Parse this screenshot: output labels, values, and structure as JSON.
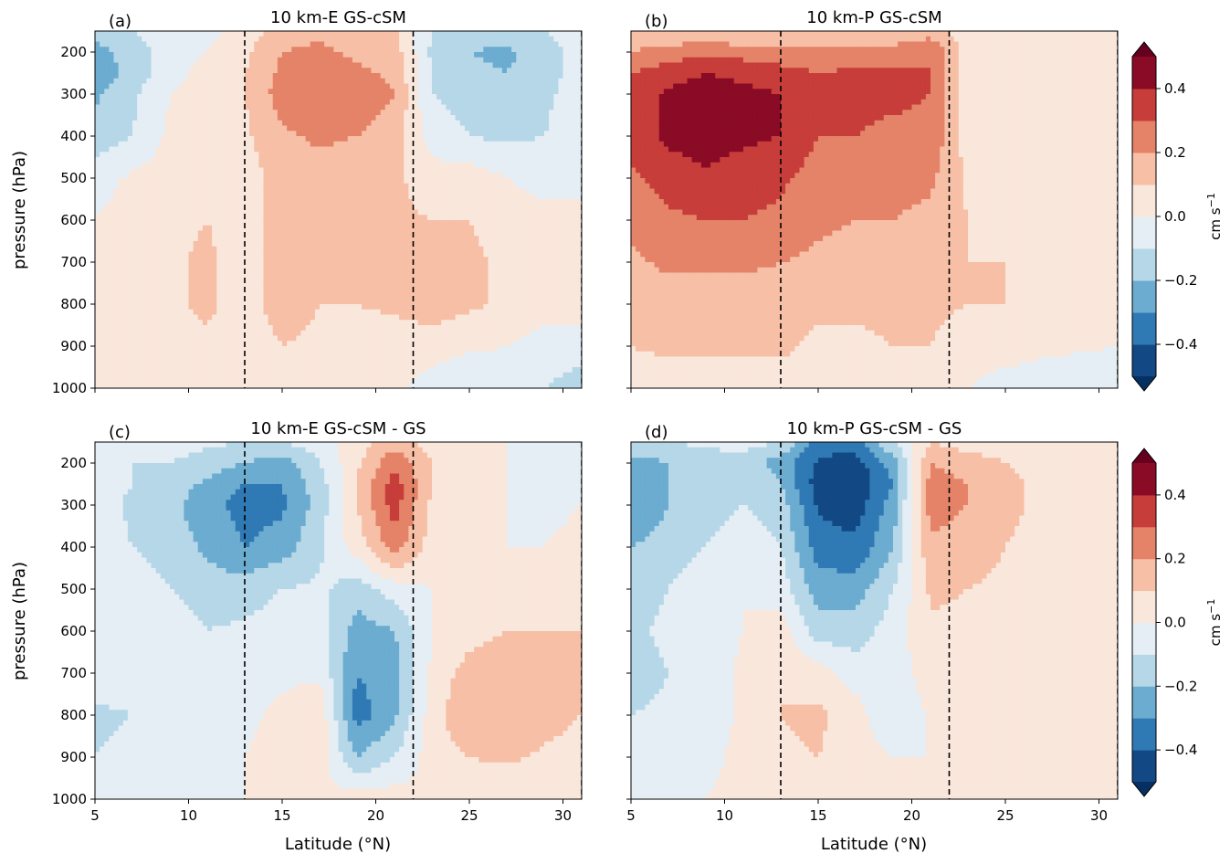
{
  "figure": {
    "ylabel": "pressure (hPa)",
    "xlabel": "Latitude (°N)",
    "cbar_label": "cm s",
    "cbar_label_exp": "−1"
  },
  "chart_data": [
    {
      "type": "heatmap",
      "panel": "(a)",
      "title": "10 km-E GS-cSM",
      "xlim": [
        5,
        31
      ],
      "ylim": [
        1000,
        150
      ],
      "xticks": [
        5,
        10,
        15,
        20,
        25,
        30
      ],
      "xtick_labels": [],
      "yticks": [
        200,
        300,
        400,
        500,
        600,
        700,
        800,
        900,
        1000
      ],
      "ytick_labels": [
        "200",
        "300",
        "400",
        "500",
        "600",
        "700",
        "800",
        "900",
        "1000"
      ],
      "vlines": [
        13,
        22,
        31
      ],
      "x": [
        5,
        7,
        9,
        11,
        13,
        15,
        17,
        19,
        21,
        23,
        25,
        27,
        29,
        31
      ],
      "y": [
        150,
        200,
        250,
        300,
        400,
        500,
        600,
        700,
        800,
        900,
        1000
      ],
      "z": [
        [
          -0.15,
          -0.1,
          -0.05,
          -0.03,
          0.05,
          0.15,
          0.18,
          0.15,
          0.12,
          -0.1,
          -0.15,
          -0.15,
          -0.1,
          -0.05
        ],
        [
          -0.25,
          -0.15,
          -0.05,
          0.0,
          0.08,
          0.2,
          0.22,
          0.18,
          0.15,
          -0.12,
          -0.2,
          -0.22,
          -0.15,
          -0.05
        ],
        [
          -0.28,
          -0.15,
          -0.05,
          0.05,
          0.1,
          0.22,
          0.25,
          0.22,
          0.18,
          -0.1,
          -0.18,
          -0.2,
          -0.15,
          -0.05
        ],
        [
          -0.22,
          -0.12,
          0.0,
          0.08,
          0.1,
          0.25,
          0.28,
          0.25,
          0.2,
          -0.1,
          -0.15,
          -0.18,
          -0.12,
          -0.05
        ],
        [
          -0.15,
          -0.1,
          0.02,
          0.05,
          0.08,
          0.18,
          0.22,
          0.2,
          0.15,
          -0.05,
          -0.1,
          -0.12,
          -0.1,
          -0.05
        ],
        [
          -0.05,
          0.02,
          0.05,
          0.08,
          0.05,
          0.15,
          0.15,
          0.12,
          0.12,
          0.05,
          0.05,
          0.0,
          -0.05,
          -0.05
        ],
        [
          0.0,
          0.05,
          0.08,
          0.1,
          0.05,
          0.15,
          0.12,
          0.12,
          0.12,
          0.1,
          0.1,
          0.05,
          0.05,
          0.05
        ],
        [
          0.0,
          0.05,
          0.08,
          0.12,
          0.05,
          0.15,
          0.12,
          0.1,
          0.12,
          0.12,
          0.12,
          0.08,
          0.05,
          0.05
        ],
        [
          0.02,
          0.05,
          0.08,
          0.12,
          0.05,
          0.15,
          0.1,
          0.1,
          0.12,
          0.15,
          0.12,
          0.08,
          0.05,
          0.05
        ],
        [
          0.02,
          0.05,
          0.05,
          0.08,
          0.05,
          0.1,
          0.08,
          0.05,
          0.05,
          0.05,
          0.02,
          0.0,
          -0.05,
          -0.05
        ],
        [
          0.02,
          0.02,
          0.05,
          0.05,
          0.05,
          0.05,
          0.05,
          0.02,
          0.02,
          -0.05,
          -0.1,
          -0.08,
          -0.1,
          -0.15
        ]
      ]
    },
    {
      "type": "heatmap",
      "panel": "(b)",
      "title": "10 km-P GS-cSM",
      "xlim": [
        5,
        31
      ],
      "ylim": [
        1000,
        150
      ],
      "xticks": [
        5,
        10,
        15,
        20,
        25,
        30
      ],
      "xtick_labels": [],
      "yticks": [
        200,
        300,
        400,
        500,
        600,
        700,
        800,
        900,
        1000
      ],
      "ytick_labels": [],
      "vlines": [
        13,
        22,
        31
      ],
      "x": [
        5,
        7,
        9,
        11,
        13,
        15,
        17,
        19,
        21,
        23,
        25,
        27,
        29,
        31
      ],
      "y": [
        150,
        200,
        250,
        300,
        400,
        500,
        600,
        700,
        800,
        900,
        1000
      ],
      "z": [
        [
          0.1,
          0.1,
          0.1,
          0.1,
          0.1,
          0.1,
          0.1,
          0.1,
          0.15,
          0.02,
          0.0,
          0.0,
          0.0,
          0.0
        ],
        [
          0.2,
          0.25,
          0.28,
          0.25,
          0.22,
          0.22,
          0.25,
          0.25,
          0.3,
          0.05,
          0.0,
          0.0,
          0.0,
          0.0
        ],
        [
          0.3,
          0.35,
          0.4,
          0.38,
          0.35,
          0.3,
          0.32,
          0.32,
          0.3,
          0.05,
          0.0,
          0.0,
          0.0,
          0.0
        ],
        [
          0.35,
          0.42,
          0.45,
          0.42,
          0.4,
          0.32,
          0.32,
          0.32,
          0.3,
          0.05,
          0.02,
          0.0,
          0.0,
          0.0
        ],
        [
          0.35,
          0.42,
          0.45,
          0.42,
          0.4,
          0.3,
          0.3,
          0.28,
          0.28,
          0.05,
          0.02,
          0.02,
          0.0,
          0.0
        ],
        [
          0.28,
          0.35,
          0.38,
          0.35,
          0.32,
          0.25,
          0.25,
          0.22,
          0.22,
          0.08,
          0.05,
          0.05,
          0.02,
          0.0
        ],
        [
          0.22,
          0.28,
          0.3,
          0.3,
          0.28,
          0.22,
          0.2,
          0.2,
          0.18,
          0.1,
          0.08,
          0.05,
          0.05,
          0.0
        ],
        [
          0.18,
          0.22,
          0.22,
          0.22,
          0.2,
          0.18,
          0.15,
          0.15,
          0.15,
          0.1,
          0.1,
          0.05,
          0.05,
          0.02
        ],
        [
          0.15,
          0.15,
          0.15,
          0.15,
          0.15,
          0.12,
          0.12,
          0.12,
          0.12,
          0.1,
          0.1,
          0.05,
          0.05,
          0.02
        ],
        [
          0.1,
          0.12,
          0.12,
          0.12,
          0.12,
          0.08,
          0.08,
          0.1,
          0.1,
          0.05,
          0.05,
          0.02,
          0.02,
          0.0
        ],
        [
          0.05,
          0.05,
          0.05,
          0.05,
          0.05,
          0.05,
          0.05,
          0.05,
          0.05,
          0.0,
          -0.05,
          -0.05,
          -0.1,
          -0.1
        ]
      ]
    },
    {
      "type": "heatmap",
      "panel": "(c)",
      "title": "10 km-E GS-cSM - GS",
      "xlim": [
        5,
        31
      ],
      "ylim": [
        1000,
        150
      ],
      "xticks": [
        5,
        10,
        15,
        20,
        25,
        30
      ],
      "xtick_labels": [
        "5",
        "10",
        "15",
        "20",
        "25",
        "30"
      ],
      "yticks": [
        200,
        300,
        400,
        500,
        600,
        700,
        800,
        900,
        1000
      ],
      "ytick_labels": [
        "200",
        "300",
        "400",
        "500",
        "600",
        "700",
        "800",
        "900",
        "1000"
      ],
      "vlines": [
        13,
        22,
        31
      ],
      "x": [
        5,
        7,
        9,
        11,
        13,
        15,
        17,
        19,
        21,
        23,
        25,
        27,
        29,
        31
      ],
      "y": [
        150,
        200,
        250,
        300,
        400,
        500,
        600,
        700,
        800,
        900,
        1000
      ],
      "z": [
        [
          -0.05,
          -0.05,
          -0.05,
          -0.08,
          -0.1,
          -0.1,
          -0.05,
          0.05,
          0.15,
          0.05,
          0.0,
          0.0,
          -0.05,
          -0.05
        ],
        [
          -0.05,
          -0.1,
          -0.1,
          -0.15,
          -0.2,
          -0.25,
          -0.1,
          0.08,
          0.28,
          0.1,
          0.0,
          0.0,
          -0.05,
          -0.05
        ],
        [
          -0.05,
          -0.1,
          -0.15,
          -0.22,
          -0.3,
          -0.3,
          -0.15,
          0.1,
          0.35,
          0.1,
          0.0,
          0.0,
          -0.05,
          0.0
        ],
        [
          -0.05,
          -0.12,
          -0.18,
          -0.25,
          -0.35,
          -0.32,
          -0.15,
          0.1,
          0.35,
          0.08,
          0.0,
          0.0,
          -0.05,
          0.0
        ],
        [
          -0.05,
          -0.1,
          -0.15,
          -0.22,
          -0.3,
          -0.25,
          -0.12,
          0.05,
          0.25,
          0.05,
          0.0,
          0.0,
          0.0,
          0.05
        ],
        [
          0.0,
          -0.05,
          -0.1,
          -0.15,
          -0.15,
          -0.1,
          -0.08,
          -0.15,
          -0.05,
          0.0,
          0.05,
          0.05,
          0.08,
          0.1
        ],
        [
          0.0,
          -0.05,
          -0.05,
          -0.1,
          -0.08,
          -0.05,
          -0.05,
          -0.25,
          -0.2,
          0.0,
          0.05,
          0.1,
          0.1,
          0.1
        ],
        [
          -0.05,
          -0.05,
          -0.05,
          -0.08,
          -0.05,
          -0.02,
          -0.02,
          -0.3,
          -0.25,
          0.02,
          0.15,
          0.18,
          0.15,
          0.1
        ],
        [
          -0.12,
          -0.1,
          -0.05,
          -0.05,
          -0.02,
          0.02,
          0.08,
          -0.35,
          -0.22,
          0.05,
          0.2,
          0.2,
          0.15,
          0.1
        ],
        [
          -0.1,
          -0.08,
          -0.05,
          -0.02,
          0.0,
          0.05,
          0.05,
          -0.2,
          -0.1,
          0.05,
          0.1,
          0.12,
          0.08,
          0.05
        ],
        [
          -0.05,
          -0.05,
          -0.02,
          0.0,
          0.0,
          0.02,
          0.02,
          0.05,
          0.05,
          0.02,
          0.02,
          0.0,
          0.0,
          0.05
        ]
      ]
    },
    {
      "type": "heatmap",
      "panel": "(d)",
      "title": "10 km-P GS-cSM - GS",
      "xlim": [
        5,
        31
      ],
      "ylim": [
        1000,
        150
      ],
      "xticks": [
        5,
        10,
        15,
        20,
        25,
        30
      ],
      "xtick_labels": [
        "5",
        "10",
        "15",
        "20",
        "25",
        "30"
      ],
      "yticks": [
        200,
        300,
        400,
        500,
        600,
        700,
        800,
        900,
        1000
      ],
      "ytick_labels": [],
      "vlines": [
        13,
        22,
        31
      ],
      "x": [
        5,
        7,
        9,
        11,
        13,
        15,
        17,
        19,
        21,
        23,
        25,
        27,
        29,
        31
      ],
      "y": [
        150,
        200,
        250,
        300,
        400,
        500,
        600,
        700,
        800,
        900,
        1000
      ],
      "z": [
        [
          -0.1,
          -0.1,
          -0.08,
          -0.05,
          -0.1,
          -0.35,
          -0.35,
          -0.1,
          0.1,
          0.05,
          0.05,
          0.0,
          0.0,
          0.0
        ],
        [
          -0.25,
          -0.2,
          -0.15,
          -0.15,
          -0.25,
          -0.42,
          -0.45,
          -0.25,
          0.2,
          0.15,
          0.1,
          0.05,
          0.0,
          0.0
        ],
        [
          -0.3,
          -0.2,
          -0.15,
          -0.1,
          -0.2,
          -0.45,
          -0.48,
          -0.3,
          0.25,
          0.2,
          0.15,
          0.05,
          0.0,
          0.0
        ],
        [
          -0.3,
          -0.2,
          -0.15,
          -0.1,
          -0.15,
          -0.42,
          -0.45,
          -0.25,
          0.25,
          0.2,
          0.15,
          0.05,
          0.0,
          0.0
        ],
        [
          -0.2,
          -0.15,
          -0.1,
          -0.05,
          -0.1,
          -0.35,
          -0.38,
          -0.2,
          0.18,
          0.15,
          0.1,
          0.05,
          0.0,
          0.0
        ],
        [
          -0.15,
          -0.1,
          -0.05,
          0.0,
          -0.05,
          -0.25,
          -0.25,
          -0.1,
          0.12,
          0.1,
          0.08,
          0.05,
          0.02,
          0.0
        ],
        [
          -0.12,
          -0.08,
          -0.05,
          0.0,
          0.05,
          -0.15,
          -0.15,
          -0.05,
          0.08,
          0.08,
          0.05,
          0.02,
          0.02,
          0.0
        ],
        [
          -0.15,
          -0.1,
          -0.05,
          0.02,
          0.1,
          0.05,
          -0.05,
          -0.05,
          0.05,
          0.05,
          0.02,
          0.02,
          0.0,
          0.0
        ],
        [
          -0.1,
          -0.08,
          -0.05,
          0.02,
          0.1,
          0.12,
          0.05,
          -0.1,
          0.02,
          0.02,
          0.0,
          0.0,
          0.0,
          0.0
        ],
        [
          -0.05,
          -0.05,
          -0.02,
          0.02,
          0.08,
          0.1,
          0.05,
          0.0,
          0.0,
          0.0,
          0.0,
          0.0,
          0.0,
          0.0
        ],
        [
          -0.02,
          -0.02,
          0.0,
          0.02,
          0.05,
          0.05,
          0.02,
          0.02,
          0.02,
          0.05,
          0.02,
          0.0,
          0.0,
          0.0
        ]
      ]
    }
  ],
  "colorbar": {
    "levels": [
      -0.5,
      -0.4,
      -0.3,
      -0.2,
      -0.1,
      0.0,
      0.1,
      0.2,
      0.3,
      0.4,
      0.5
    ],
    "colors": [
      "#124984",
      "#2f79b5",
      "#6bacd0",
      "#b5d7e8",
      "#e4eef4",
      "#fae7dc",
      "#f6bfa6",
      "#e58368",
      "#c73d3a",
      "#8a0b25"
    ],
    "under_color": "#053061",
    "over_color": "#67001f",
    "ticks": [
      -0.4,
      -0.2,
      0.0,
      0.2,
      0.4
    ],
    "tick_labels": [
      "−0.4",
      "−0.2",
      "0.0",
      "0.2",
      "0.4"
    ]
  }
}
